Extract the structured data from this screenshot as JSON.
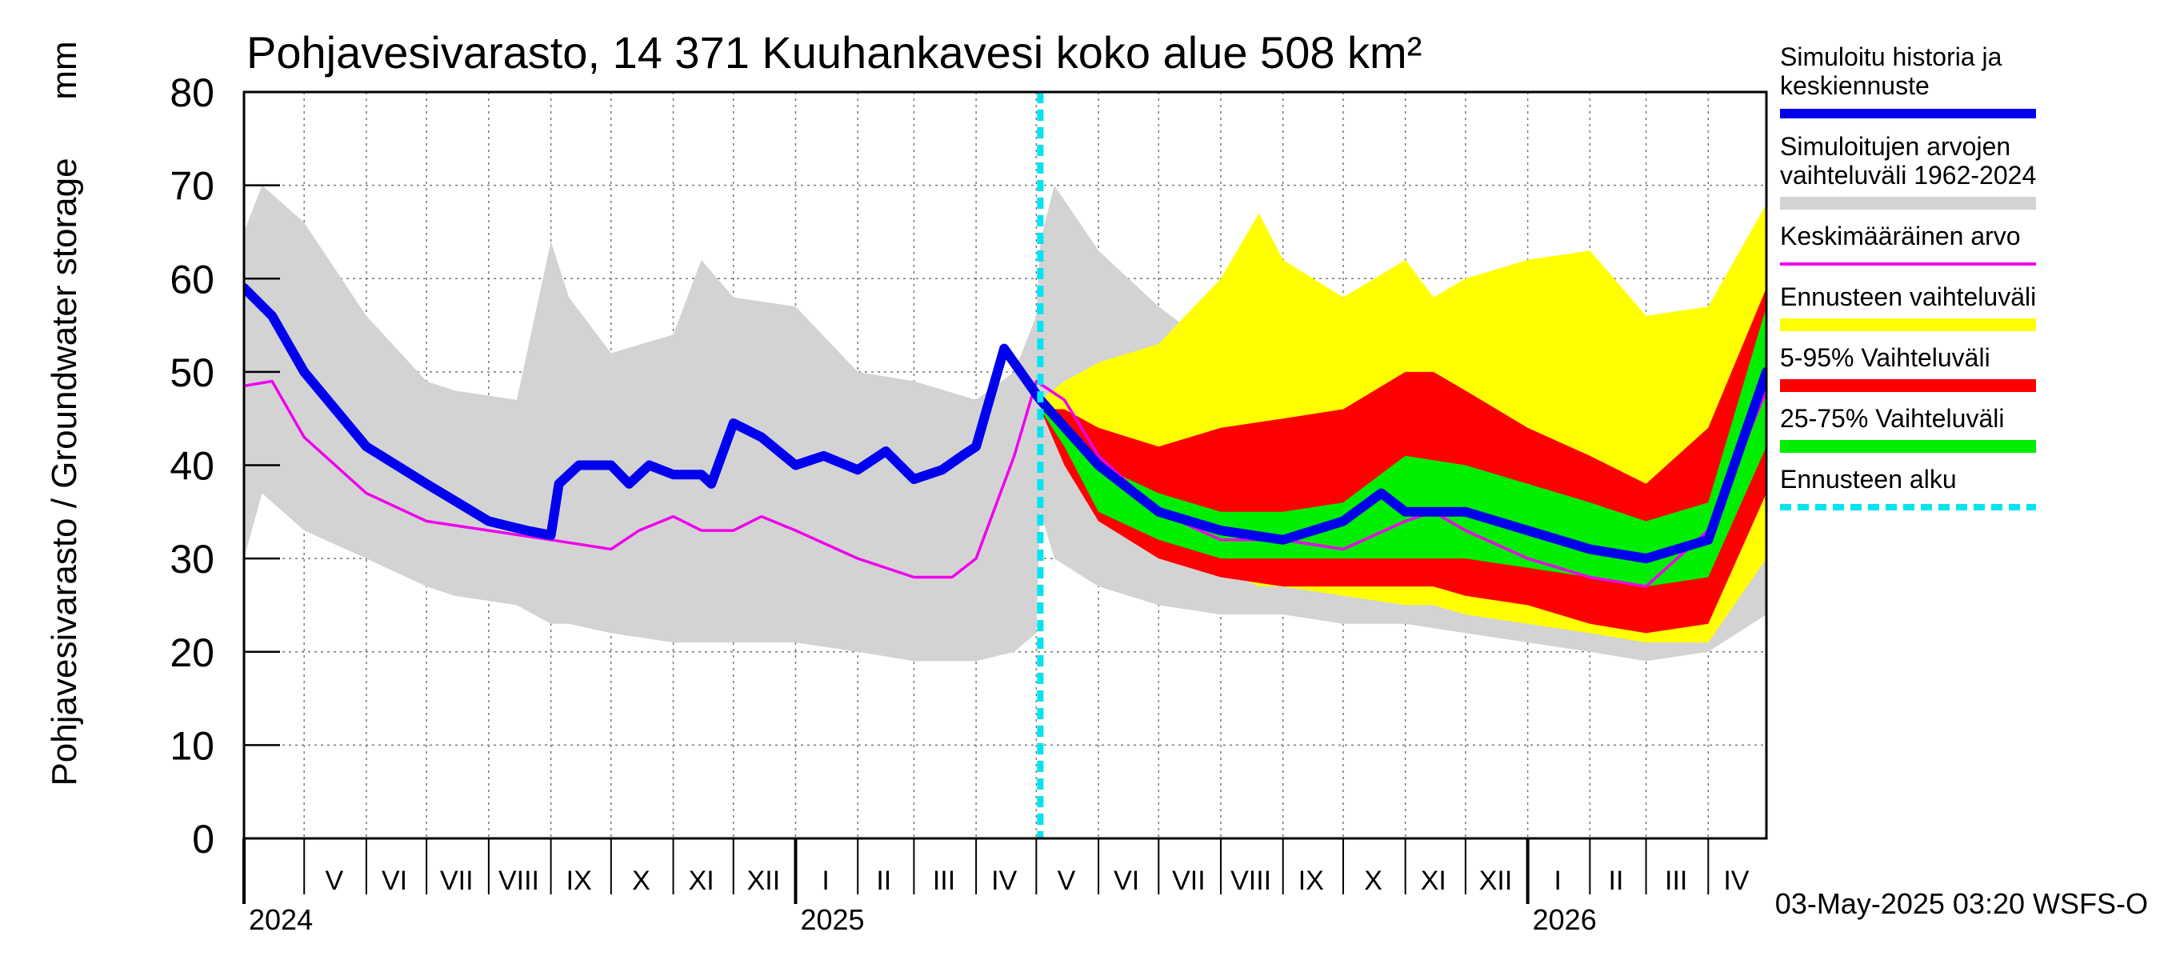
{
  "chart_data": {
    "type": "area",
    "title": "Pohjavesivarasto, 14 371 Kuuhankavesi koko alue 508 km²",
    "ylabel": "Pohjavesivarasto / Groundwater storage",
    "yunit": "mm",
    "ylim": [
      0,
      80
    ],
    "yticks": [
      0,
      10,
      20,
      30,
      40,
      50,
      60,
      70,
      80
    ],
    "xlim": [
      "2024-04-01",
      "2026-04-30"
    ],
    "grid": true,
    "legend_position": "right",
    "forecast_start": "2025-05-03",
    "footer": "03-May-2025 03:20 WSFS-O",
    "month_labels": [
      {
        "label": "V",
        "date": "2024-05-16"
      },
      {
        "label": "VI",
        "date": "2024-06-15"
      },
      {
        "label": "VII",
        "date": "2024-07-16"
      },
      {
        "label": "VIII",
        "date": "2024-08-16"
      },
      {
        "label": "IX",
        "date": "2024-09-15"
      },
      {
        "label": "X",
        "date": "2024-10-16"
      },
      {
        "label": "XI",
        "date": "2024-11-15"
      },
      {
        "label": "XII",
        "date": "2024-12-16"
      },
      {
        "label": "I",
        "date": "2025-01-16"
      },
      {
        "label": "II",
        "date": "2025-02-14"
      },
      {
        "label": "III",
        "date": "2025-03-16"
      },
      {
        "label": "IV",
        "date": "2025-04-15"
      },
      {
        "label": "V",
        "date": "2025-05-16"
      },
      {
        "label": "VI",
        "date": "2025-06-15"
      },
      {
        "label": "VII",
        "date": "2025-07-16"
      },
      {
        "label": "VIII",
        "date": "2025-08-16"
      },
      {
        "label": "IX",
        "date": "2025-09-15"
      },
      {
        "label": "X",
        "date": "2025-10-16"
      },
      {
        "label": "XI",
        "date": "2025-11-15"
      },
      {
        "label": "XII",
        "date": "2025-12-16"
      },
      {
        "label": "I",
        "date": "2026-01-16"
      },
      {
        "label": "II",
        "date": "2026-02-14"
      },
      {
        "label": "III",
        "date": "2026-03-16"
      },
      {
        "label": "IV",
        "date": "2026-04-15"
      }
    ],
    "year_labels": [
      {
        "label": "2024",
        "date": "2024-04-01"
      },
      {
        "label": "2025",
        "date": "2025-01-01"
      },
      {
        "label": "2026",
        "date": "2026-01-01"
      }
    ],
    "legend": [
      {
        "label": "Simuloitu historia ja keskiennuste",
        "color": "#0000ee",
        "style": "line-thick"
      },
      {
        "label": "Simuloitujen arvojen vaihteluväli 1962-2024",
        "color": "#d3d3d3",
        "style": "band"
      },
      {
        "label": "Keskimääräinen arvo",
        "color": "#ee00ee",
        "style": "line-thin"
      },
      {
        "label": "Ennusteen vaihteluväli",
        "color": "#ffff00",
        "style": "band"
      },
      {
        "label": "5-95% Vaihteluväli",
        "color": "#ff0000",
        "style": "band"
      },
      {
        "label": "25-75% Vaihteluväli",
        "color": "#00ee00",
        "style": "band"
      },
      {
        "label": "Ennusteen alku",
        "color": "#00e5ee",
        "style": "dashed"
      }
    ],
    "series": [
      {
        "name": "Simuloitujen arvojen vaihteluväli 1962-2024",
        "type": "band",
        "color": "#d3d3d3",
        "x": [
          "2024-04-01",
          "2024-04-10",
          "2024-05-01",
          "2024-06-01",
          "2024-07-01",
          "2024-07-15",
          "2024-08-15",
          "2024-09-01",
          "2024-09-10",
          "2024-10-01",
          "2024-11-01",
          "2024-11-15",
          "2024-12-01",
          "2025-01-01",
          "2025-02-01",
          "2025-03-01",
          "2025-04-01",
          "2025-04-20",
          "2025-05-01",
          "2025-05-03"
        ],
        "upper": [
          65,
          70,
          66,
          56,
          49,
          48,
          47,
          64,
          58,
          52,
          54,
          62,
          58,
          57,
          50,
          49,
          47,
          50,
          56,
          64
        ],
        "lower": [
          30,
          37,
          33,
          30,
          27,
          26,
          25,
          23,
          23,
          22,
          21,
          21,
          21,
          21,
          20,
          19,
          19,
          20,
          22,
          35
        ]
      },
      {
        "name": "Simuloitujen arvojen vaihteluväli 1962-2024 (ennuste)",
        "type": "band",
        "color": "#d3d3d3",
        "x": [
          "2025-05-03",
          "2025-05-10",
          "2025-06-01",
          "2025-07-01",
          "2025-08-01",
          "2025-09-01",
          "2025-10-01",
          "2025-11-01",
          "2025-12-01",
          "2026-01-01",
          "2026-02-01",
          "2026-03-01",
          "2026-04-01",
          "2026-04-30"
        ],
        "upper": [
          64,
          70,
          63,
          57,
          52,
          52,
          51,
          52,
          50,
          50,
          48,
          48,
          48,
          66
        ],
        "lower": [
          35,
          30,
          27,
          25,
          24,
          24,
          23,
          23,
          22,
          21,
          20,
          19,
          20,
          24
        ]
      },
      {
        "name": "Ennusteen vaihteluväli",
        "type": "band",
        "color": "#ffff00",
        "x": [
          "2025-05-03",
          "2025-05-15",
          "2025-06-01",
          "2025-07-01",
          "2025-08-01",
          "2025-08-20",
          "2025-09-01",
          "2025-10-01",
          "2025-11-01",
          "2025-11-15",
          "2025-12-01",
          "2026-01-01",
          "2026-02-01",
          "2026-03-01",
          "2026-04-01",
          "2026-04-30"
        ],
        "upper": [
          47,
          49,
          51,
          53,
          60,
          67,
          62,
          58,
          62,
          58,
          60,
          62,
          63,
          56,
          57,
          68
        ],
        "lower": [
          46,
          41,
          35,
          31,
          29,
          27,
          27,
          26,
          25,
          25,
          24,
          23,
          22,
          21,
          21,
          30
        ]
      },
      {
        "name": "5-95% Vaihteluväli",
        "type": "band",
        "color": "#ff0000",
        "x": [
          "2025-05-03",
          "2025-05-15",
          "2025-06-01",
          "2025-07-01",
          "2025-08-01",
          "2025-09-01",
          "2025-10-01",
          "2025-11-01",
          "2025-11-15",
          "2025-12-01",
          "2026-01-01",
          "2026-02-01",
          "2026-03-01",
          "2026-04-01",
          "2026-04-30"
        ],
        "upper": [
          46,
          46,
          44,
          42,
          44,
          45,
          46,
          50,
          50,
          48,
          44,
          41,
          38,
          44,
          59
        ],
        "lower": [
          46,
          40,
          34,
          30,
          28,
          27,
          27,
          27,
          27,
          26,
          25,
          23,
          22,
          23,
          37
        ]
      },
      {
        "name": "25-75% Vaihteluväli",
        "type": "band",
        "color": "#00ee00",
        "x": [
          "2025-05-03",
          "2025-05-15",
          "2025-06-01",
          "2025-07-01",
          "2025-08-01",
          "2025-09-01",
          "2025-10-01",
          "2025-11-01",
          "2025-12-01",
          "2026-01-01",
          "2026-02-01",
          "2026-03-01",
          "2026-04-01",
          "2026-04-30"
        ],
        "upper": [
          46,
          44,
          40,
          37,
          35,
          35,
          36,
          41,
          40,
          38,
          36,
          34,
          36,
          57
        ],
        "lower": [
          46,
          42,
          35,
          32,
          30,
          30,
          30,
          30,
          30,
          29,
          28,
          27,
          28,
          42
        ]
      },
      {
        "name": "Keskimääräinen arvo",
        "type": "line",
        "color": "#ee00ee",
        "x": [
          "2024-04-01",
          "2024-04-15",
          "2024-05-01",
          "2024-06-01",
          "2024-07-01",
          "2024-08-01",
          "2024-09-01",
          "2024-10-01",
          "2024-10-15",
          "2024-11-01",
          "2024-11-15",
          "2024-12-01",
          "2024-12-15",
          "2025-01-01",
          "2025-02-01",
          "2025-03-01",
          "2025-03-20",
          "2025-04-01",
          "2025-04-20",
          "2025-05-01",
          "2025-05-15",
          "2025-06-01",
          "2025-07-01",
          "2025-08-01",
          "2025-09-01",
          "2025-10-01",
          "2025-11-01",
          "2025-11-15",
          "2025-12-01",
          "2026-01-01",
          "2026-02-01",
          "2026-03-01",
          "2026-04-01",
          "2026-04-30"
        ],
        "y": [
          48.5,
          49,
          43,
          37,
          34,
          33,
          32,
          31,
          33,
          34.5,
          33,
          33,
          34.5,
          33,
          30,
          28,
          28,
          30,
          41,
          49,
          47,
          41,
          35,
          32,
          32,
          31,
          34,
          35,
          33,
          30,
          28,
          27,
          33,
          48
        ]
      },
      {
        "name": "Simuloitu historia ja keskiennuste",
        "type": "line",
        "color": "#0000ee",
        "x": [
          "2024-04-01",
          "2024-04-15",
          "2024-05-01",
          "2024-06-01",
          "2024-07-01",
          "2024-08-01",
          "2024-08-20",
          "2024-09-01",
          "2024-09-05",
          "2024-09-15",
          "2024-10-01",
          "2024-10-10",
          "2024-10-20",
          "2024-11-01",
          "2024-11-15",
          "2024-11-20",
          "2024-12-01",
          "2024-12-15",
          "2025-01-01",
          "2025-01-15",
          "2025-02-01",
          "2025-02-15",
          "2025-03-01",
          "2025-03-15",
          "2025-03-25",
          "2025-04-01",
          "2025-04-15",
          "2025-05-03",
          "2025-06-01",
          "2025-07-01",
          "2025-08-01",
          "2025-09-01",
          "2025-10-01",
          "2025-10-20",
          "2025-11-01",
          "2025-12-01",
          "2026-01-01",
          "2026-02-01",
          "2026-03-01",
          "2026-04-01",
          "2026-04-30"
        ],
        "y": [
          59,
          56,
          50,
          42,
          38,
          34,
          33,
          32.5,
          38,
          40,
          40,
          38,
          40,
          39,
          39,
          38,
          44.5,
          43,
          40,
          41,
          39.5,
          41.5,
          38.5,
          39.5,
          41,
          42,
          52.5,
          47,
          40,
          35,
          33,
          32,
          34,
          37,
          35,
          35,
          33,
          31,
          30,
          32,
          50
        ]
      }
    ]
  }
}
